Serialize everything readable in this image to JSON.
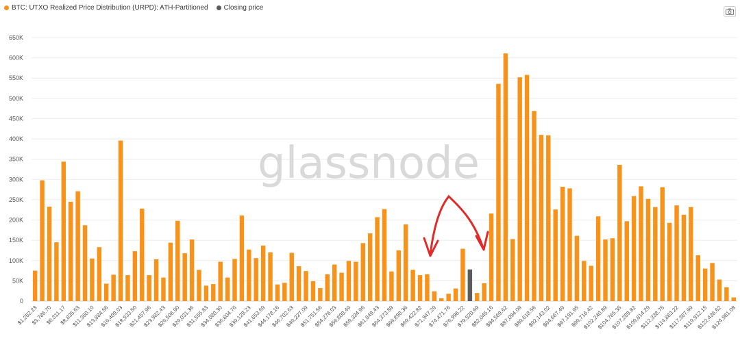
{
  "legend": {
    "series_label": "BTC: UTXO Realized Price Distribution (URPD): ATH-Partitioned",
    "series_color": "#f7931a",
    "closing_label": "Closing price",
    "closing_color": "#5b5b5b"
  },
  "toolbar": {
    "camera_icon": "camera-icon"
  },
  "watermark": "glassnode",
  "chart_data": {
    "type": "bar",
    "ylim": [
      0,
      650000
    ],
    "yticks": [
      0,
      50000,
      100000,
      150000,
      200000,
      250000,
      300000,
      350000,
      400000,
      450000,
      500000,
      550000,
      600000,
      650000
    ],
    "ytick_labels": [
      "0",
      "50K",
      "100K",
      "150K",
      "200K",
      "250K",
      "300K",
      "350K",
      "400K",
      "450K",
      "500K",
      "550K",
      "600K",
      "650K"
    ],
    "xtick_labels": [
      "$1,262.23",
      "$3,786.70",
      "$6,311.17",
      "$8,835.63",
      "$11,360.10",
      "$13,884.56",
      "$16,409.03",
      "$18,933.50",
      "$21,457.96",
      "$23,982.43",
      "$26,506.90",
      "$29,031.36",
      "$31,555.83",
      "$34,080.30",
      "$36,604.76",
      "$39,129.23",
      "$41,653.69",
      "$44,178.16",
      "$46,702.63",
      "$49,227.09",
      "$51,751.56",
      "$54,276.03",
      "$56,800.49",
      "$59,324.96",
      "$61,849.43",
      "$64,373.89",
      "$66,898.36",
      "$69,422.82",
      "$71,947.29",
      "$74,471.76",
      "$76,996.22",
      "$79,520.69",
      "$82,045.16",
      "$84,569.62",
      "$87,094.09",
      "$89,618.56",
      "$92,143.02",
      "$94,667.49",
      "$97,191.95",
      "$99,716.42",
      "$102,240.89",
      "$104,765.35",
      "$107,289.82",
      "$109,814.29",
      "$112,338.75",
      "$114,863.22",
      "$117,387.69",
      "$119,912.15",
      "$122,436.62",
      "$124,961.08"
    ],
    "values": [
      75000,
      298000,
      233000,
      145000,
      344000,
      245000,
      271000,
      187000,
      105000,
      133000,
      43000,
      65000,
      396000,
      64000,
      123000,
      228000,
      64000,
      103000,
      58000,
      144000,
      198000,
      118000,
      152000,
      77000,
      38000,
      42000,
      97000,
      58000,
      104000,
      211000,
      127000,
      106000,
      137000,
      120000,
      41000,
      45000,
      119000,
      86000,
      74000,
      49000,
      32000,
      66000,
      90000,
      70000,
      99000,
      97000,
      143000,
      167000,
      207000,
      227000,
      73000,
      125000,
      189000,
      77000,
      64000,
      66000,
      24000,
      7000,
      18000,
      31000,
      129000,
      78000,
      20000,
      44000,
      216000,
      536000,
      611000,
      153000,
      552000,
      558000,
      469000,
      410000,
      409000,
      226000,
      282000,
      278000,
      161000,
      99000,
      87000,
      209000,
      152000,
      155000,
      336000,
      197000,
      259000,
      283000,
      252000,
      232000,
      281000,
      193000,
      236000,
      213000,
      232000,
      113000,
      80000,
      94000,
      53000,
      34000,
      9000
    ],
    "closing_index": 61
  }
}
